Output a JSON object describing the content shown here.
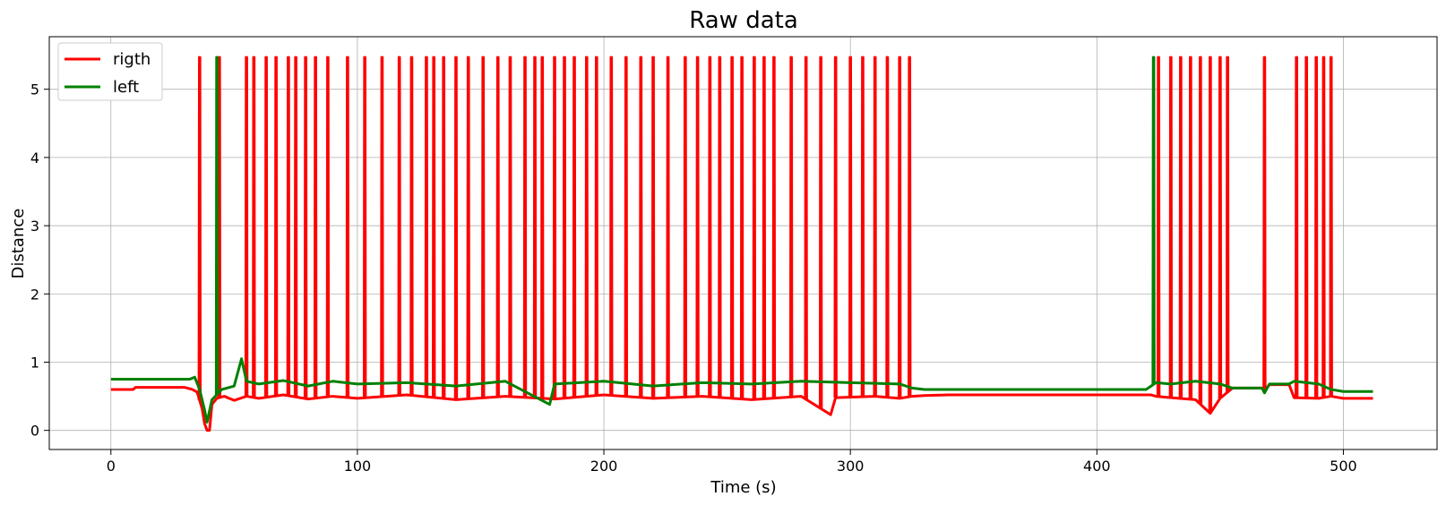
{
  "chart_data": {
    "type": "line",
    "title": "Raw data",
    "xlabel": "Time (s)",
    "ylabel": "Distance",
    "xlim": [
      -25,
      538
    ],
    "ylim": [
      -0.28,
      5.77
    ],
    "xticks": [
      0,
      100,
      200,
      300,
      400,
      500
    ],
    "yticks": [
      0,
      1,
      2,
      3,
      4,
      5
    ],
    "grid": true,
    "legend_position": "top-left",
    "series": [
      {
        "name": "rigth",
        "color": "#ff0000",
        "spikes": [
          36,
          44,
          55,
          58,
          63,
          67,
          72,
          75,
          79,
          83,
          88,
          96,
          103,
          110,
          117,
          122,
          128,
          131,
          135,
          140,
          145,
          151,
          157,
          162,
          168,
          172,
          175,
          180,
          184,
          188,
          193,
          197,
          203,
          209,
          215,
          220,
          226,
          233,
          238,
          243,
          247,
          252,
          256,
          261,
          265,
          269,
          276,
          282,
          288,
          294,
          300,
          305,
          310,
          315,
          320,
          324,
          425,
          430,
          434,
          438,
          442,
          446,
          450,
          453,
          468,
          481,
          485,
          489,
          492,
          495
        ],
        "points": [
          [
            0,
            0.6
          ],
          [
            9,
            0.6
          ],
          [
            10,
            0.63
          ],
          [
            30,
            0.63
          ],
          [
            33,
            0.6
          ],
          [
            35,
            0.56
          ],
          [
            37,
            0.32
          ],
          [
            38,
            0.1
          ],
          [
            39,
            0.0
          ],
          [
            40,
            0.0
          ],
          [
            41,
            0.38
          ],
          [
            43,
            0.47
          ],
          [
            46,
            0.5
          ],
          [
            50,
            0.44
          ],
          [
            55,
            0.5
          ],
          [
            60,
            0.47
          ],
          [
            70,
            0.52
          ],
          [
            80,
            0.46
          ],
          [
            90,
            0.5
          ],
          [
            100,
            0.47
          ],
          [
            120,
            0.52
          ],
          [
            140,
            0.45
          ],
          [
            160,
            0.5
          ],
          [
            180,
            0.46
          ],
          [
            200,
            0.52
          ],
          [
            220,
            0.47
          ],
          [
            240,
            0.5
          ],
          [
            260,
            0.45
          ],
          [
            280,
            0.5
          ],
          [
            292,
            0.23
          ],
          [
            294,
            0.48
          ],
          [
            310,
            0.5
          ],
          [
            320,
            0.47
          ],
          [
            325,
            0.5
          ],
          [
            330,
            0.51
          ],
          [
            340,
            0.52
          ],
          [
            422,
            0.52
          ],
          [
            424,
            0.5
          ],
          [
            430,
            0.48
          ],
          [
            440,
            0.45
          ],
          [
            446,
            0.25
          ],
          [
            450,
            0.47
          ],
          [
            455,
            0.62
          ],
          [
            467,
            0.62
          ],
          [
            468,
            0.58
          ],
          [
            470,
            0.67
          ],
          [
            478,
            0.67
          ],
          [
            480,
            0.48
          ],
          [
            490,
            0.47
          ],
          [
            495,
            0.5
          ],
          [
            500,
            0.47
          ],
          [
            512,
            0.47
          ]
        ]
      },
      {
        "name": "left",
        "color": "#008000",
        "spikes": [
          43,
          423
        ],
        "points": [
          [
            0,
            0.75
          ],
          [
            32,
            0.75
          ],
          [
            34,
            0.78
          ],
          [
            36,
            0.6
          ],
          [
            38,
            0.3
          ],
          [
            39,
            0.12
          ],
          [
            41,
            0.45
          ],
          [
            45,
            0.6
          ],
          [
            50,
            0.65
          ],
          [
            53,
            1.05
          ],
          [
            55,
            0.72
          ],
          [
            60,
            0.68
          ],
          [
            70,
            0.73
          ],
          [
            80,
            0.65
          ],
          [
            90,
            0.72
          ],
          [
            100,
            0.68
          ],
          [
            120,
            0.7
          ],
          [
            140,
            0.65
          ],
          [
            160,
            0.72
          ],
          [
            178,
            0.38
          ],
          [
            180,
            0.68
          ],
          [
            200,
            0.72
          ],
          [
            220,
            0.65
          ],
          [
            240,
            0.7
          ],
          [
            260,
            0.68
          ],
          [
            280,
            0.72
          ],
          [
            300,
            0.7
          ],
          [
            320,
            0.68
          ],
          [
            325,
            0.62
          ],
          [
            330,
            0.6
          ],
          [
            420,
            0.6
          ],
          [
            424,
            0.7
          ],
          [
            430,
            0.68
          ],
          [
            440,
            0.72
          ],
          [
            450,
            0.68
          ],
          [
            455,
            0.62
          ],
          [
            467,
            0.62
          ],
          [
            468,
            0.55
          ],
          [
            470,
            0.68
          ],
          [
            478,
            0.68
          ],
          [
            480,
            0.72
          ],
          [
            490,
            0.68
          ],
          [
            495,
            0.6
          ],
          [
            500,
            0.57
          ],
          [
            512,
            0.57
          ]
        ]
      }
    ]
  }
}
